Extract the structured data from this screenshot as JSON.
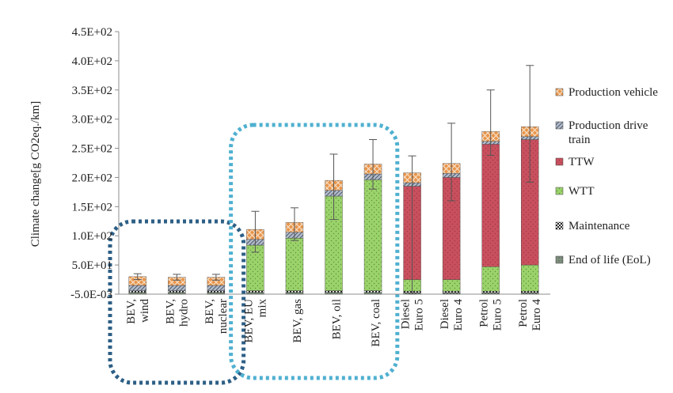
{
  "chart_data": {
    "type": "bar",
    "stacked": true,
    "ylabel": "Climate change[g CO2eq./km]",
    "y_ticks": [
      "-5.0E-03",
      "5.0E+01",
      "1.0E+02",
      "1.5E+02",
      "2.0E+02",
      "2.5E+02",
      "3.0E+02",
      "3.5E+02",
      "4.0E+02",
      "4.5E+02"
    ],
    "ylim": [
      0,
      450
    ],
    "grid": false,
    "legend_position": "right",
    "categories": [
      [
        "BEV,",
        "wind"
      ],
      [
        "BEV,",
        "hydro"
      ],
      [
        "BEV,",
        "nuclear"
      ],
      [
        "BEV, EU",
        "mix"
      ],
      [
        "BEV,  gas"
      ],
      [
        "BEV, oil"
      ],
      [
        "BEV, coal"
      ],
      [
        "Diesel",
        "Euro 5"
      ],
      [
        "Diesel",
        "Euro 4"
      ],
      [
        "Petrol",
        "Euro 5"
      ],
      [
        "Petrol",
        "Euro 4"
      ]
    ],
    "series": [
      {
        "name": "End of life (EoL)",
        "color": "#7f8f7f",
        "pattern": "eol",
        "values": [
          3,
          3,
          3,
          3,
          3,
          3,
          3,
          2,
          2,
          2,
          2
        ]
      },
      {
        "name": "Maintenance",
        "color": "#222222",
        "pattern": "maint",
        "values": [
          3,
          3,
          3,
          3,
          3,
          3,
          3,
          3,
          3,
          3,
          3
        ]
      },
      {
        "name": "WTT",
        "color": "#9bd36b",
        "pattern": "wtt",
        "values": [
          0,
          0,
          0,
          78,
          90,
          162,
          190,
          20,
          20,
          42,
          45
        ]
      },
      {
        "name": "TTW",
        "color": "#c9505e",
        "pattern": "ttw",
        "values": [
          0,
          0,
          0,
          0,
          0,
          0,
          0,
          160,
          175,
          210,
          215
        ]
      },
      {
        "name": "Production drive train",
        "color": "#9aa3b3",
        "pattern": "pdt",
        "values": [
          9,
          9,
          9,
          10,
          10,
          10,
          10,
          6,
          7,
          5,
          5
        ]
      },
      {
        "name": "Production vehicle",
        "color": "#e8944a",
        "pattern": "pv",
        "values": [
          15,
          14,
          14,
          17,
          17,
          17,
          17,
          17,
          17,
          17,
          17
        ]
      }
    ],
    "error_bars": [
      {
        "high": 35,
        "low": 25
      },
      {
        "high": 34,
        "low": 24
      },
      {
        "high": 34,
        "low": 24
      },
      {
        "high": 142,
        "low": 72
      },
      {
        "high": 148,
        "low": 92
      },
      {
        "high": 240,
        "low": 128
      },
      {
        "high": 265,
        "low": 180
      },
      {
        "high": 237,
        "low": 0
      },
      {
        "high": 293,
        "low": 160
      },
      {
        "high": 350,
        "low": 238
      },
      {
        "high": 392,
        "low": 192
      }
    ],
    "legend_order": [
      "Production vehicle",
      "Production drive train",
      "TTW",
      "WTT",
      "Maintenance",
      "End of life (EoL)"
    ],
    "legend_labels": {
      "Production vehicle": [
        "Production vehicle"
      ],
      "Production drive train": [
        "Production drive",
        "train"
      ],
      "TTW": [
        "TTW"
      ],
      "WTT": [
        "WTT"
      ],
      "Maintenance": [
        "Maintenance"
      ],
      "End of life (EoL)": [
        "End of life (EoL)"
      ]
    },
    "groupings": [
      {
        "label": "",
        "categories": [
          0,
          1,
          2
        ],
        "color": "#2d5f86",
        "style": "dotted"
      },
      {
        "label": "",
        "categories": [
          3,
          4,
          5,
          6
        ],
        "color": "#4fb0d0",
        "style": "dotted"
      }
    ]
  }
}
